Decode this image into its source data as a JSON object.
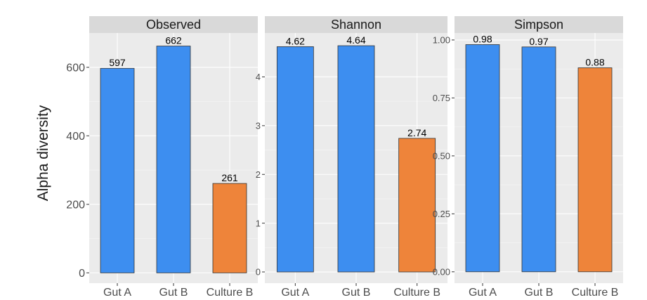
{
  "chart_data": {
    "type": "bar",
    "ylabel": "Alpha diversity",
    "categories": [
      "Gut A",
      "Gut B",
      "Culture B"
    ],
    "colors": {
      "Gut A": "#3d8ef0",
      "Gut B": "#3d8ef0",
      "Culture B": "#ee843a"
    },
    "panel_background": "#ebebeb",
    "strip_background": "#d9d9d9",
    "grid": true,
    "panels": [
      {
        "title": "Observed",
        "values": [
          597,
          662,
          261
        ],
        "value_labels": [
          "597",
          "662",
          "261"
        ],
        "ylim": [
          -30,
          700
        ],
        "yticks": [
          0,
          200,
          400,
          600
        ],
        "ytick_labels": [
          "0",
          "200",
          "400",
          "600"
        ]
      },
      {
        "title": "Shannon",
        "values": [
          4.62,
          4.64,
          2.74
        ],
        "value_labels": [
          "4.62",
          "4.64",
          "2.74"
        ],
        "ylim": [
          -0.23,
          4.9
        ],
        "yticks": [
          0,
          1,
          2,
          3,
          4
        ],
        "ytick_labels": [
          "0",
          "1",
          "2",
          "3",
          "4"
        ]
      },
      {
        "title": "Simpson",
        "values": [
          0.98,
          0.97,
          0.88
        ],
        "value_labels": [
          "0.98",
          "0.97",
          "0.88"
        ],
        "ylim": [
          -0.049,
          1.03
        ],
        "yticks": [
          0,
          0.25,
          0.5,
          0.75,
          1
        ],
        "ytick_labels": [
          "0.00",
          "0.25",
          "0.50",
          "0.75",
          "1.00"
        ]
      }
    ]
  }
}
